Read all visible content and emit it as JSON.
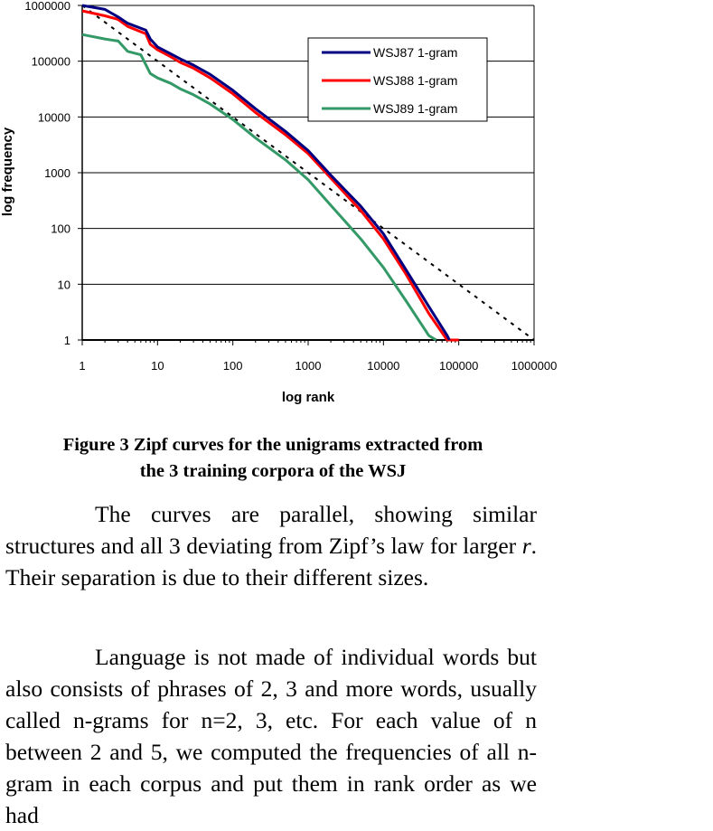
{
  "chart_data": {
    "type": "line",
    "xlabel": "log rank",
    "ylabel": "log frequency",
    "x_scale": "log",
    "y_scale": "log",
    "xlim": [
      1,
      1000000
    ],
    "ylim": [
      1,
      1000000
    ],
    "x_ticks": [
      "1",
      "10",
      "100",
      "1000",
      "10000",
      "100000",
      "1000000"
    ],
    "y_ticks": [
      "1",
      "10",
      "100",
      "1000",
      "10000",
      "100000",
      "1000000"
    ],
    "grid": "horizontal",
    "legend_position": "top-right",
    "series": [
      {
        "name": "WSJ87 1-gram",
        "color": "#000080",
        "x": [
          1,
          2,
          3,
          4,
          7,
          8,
          10,
          15,
          20,
          30,
          50,
          100,
          200,
          500,
          1000,
          2000,
          5000,
          10000,
          20000,
          40000,
          70000,
          75000
        ],
        "y": [
          1000000,
          850000,
          620000,
          480000,
          360000,
          250000,
          180000,
          135000,
          110000,
          85000,
          58000,
          30000,
          14000,
          5500,
          2500,
          900,
          250,
          80,
          18,
          4,
          1.2,
          1
        ]
      },
      {
        "name": "WSJ88 1-gram",
        "color": "#ff0000",
        "x": [
          1,
          2,
          3,
          4,
          7,
          8,
          10,
          15,
          20,
          30,
          50,
          100,
          200,
          500,
          1000,
          2000,
          5000,
          10000,
          20000,
          40000,
          70000,
          100000
        ],
        "y": [
          800000,
          650000,
          560000,
          420000,
          310000,
          200000,
          160000,
          120000,
          95000,
          75000,
          50000,
          26000,
          12000,
          4800,
          2200,
          800,
          210,
          65,
          15,
          3,
          1,
          1
        ]
      },
      {
        "name": "WSJ89 1-gram",
        "color": "#339966",
        "x": [
          1,
          2,
          3,
          4,
          6,
          8,
          10,
          15,
          20,
          30,
          50,
          100,
          200,
          500,
          1000,
          2000,
          5000,
          10000,
          20000,
          40000,
          50000
        ],
        "y": [
          300000,
          250000,
          230000,
          150000,
          130000,
          60000,
          50000,
          40000,
          32000,
          25000,
          17000,
          9000,
          4200,
          1700,
          750,
          260,
          65,
          20,
          5,
          1.2,
          1
        ]
      },
      {
        "name": "",
        "color": "#000000",
        "style": "dashed",
        "x": [
          1,
          1000000
        ],
        "y": [
          1000000,
          1
        ]
      }
    ]
  },
  "figure": {
    "caption_line1": "Figure 3 Zipf curves for the unigrams extracted from",
    "caption_line2": "the 3 training corpora of the WSJ"
  },
  "body": {
    "p1_before": "The curves are parallel, showing similar structures and all 3 deviating from Zipf’s law for larger ",
    "p1_italic": "r",
    "p1_after": ". Their separation is due to their different sizes.",
    "p2": "Language is not made of individual words but also consists of phrases of 2, 3 and more words, usually called n-grams for n=2, 3, etc. For each value of n between 2 and 5, we computed the frequencies of all n-gram in each corpus and put them in rank order as we had"
  }
}
